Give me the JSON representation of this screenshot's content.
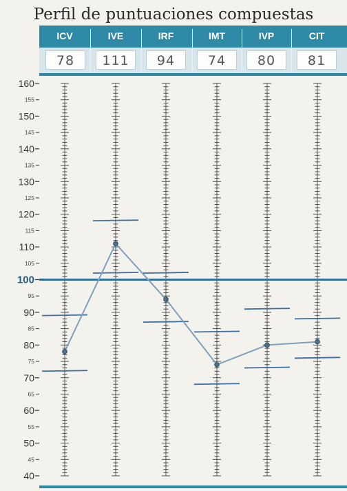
{
  "title": "Perfil de puntuaciones compuestas",
  "colors": {
    "header": "#2f8aa7",
    "profile_line": "#7f9fbe",
    "confidence_mark": "#3d6ea3",
    "ticks": "#3a3a3a",
    "mean_line": "#2f6f9a"
  },
  "chart_data": {
    "type": "line",
    "categories": [
      "ICV",
      "IVE",
      "IRF",
      "IMT",
      "IVP",
      "CIT"
    ],
    "values": [
      78,
      111,
      94,
      74,
      80,
      81
    ],
    "score_labels": [
      "78",
      "111",
      "94",
      "74",
      "80",
      "81"
    ],
    "confidence_intervals": [
      [
        72,
        89
      ],
      [
        102,
        118
      ],
      [
        87,
        102
      ],
      [
        68,
        84
      ],
      [
        73,
        91
      ],
      [
        76,
        88
      ]
    ],
    "ylim": [
      40,
      160
    ],
    "major_ticks": [
      "160",
      "150",
      "140",
      "130",
      "120",
      "110",
      "100",
      "90",
      "80",
      "70",
      "60",
      "50",
      "40"
    ],
    "minor_ticks": [
      "155",
      "145",
      "135",
      "125",
      "115",
      "105",
      "95",
      "85",
      "75",
      "65",
      "55",
      "45"
    ],
    "mean_value": 100,
    "grid": false
  }
}
